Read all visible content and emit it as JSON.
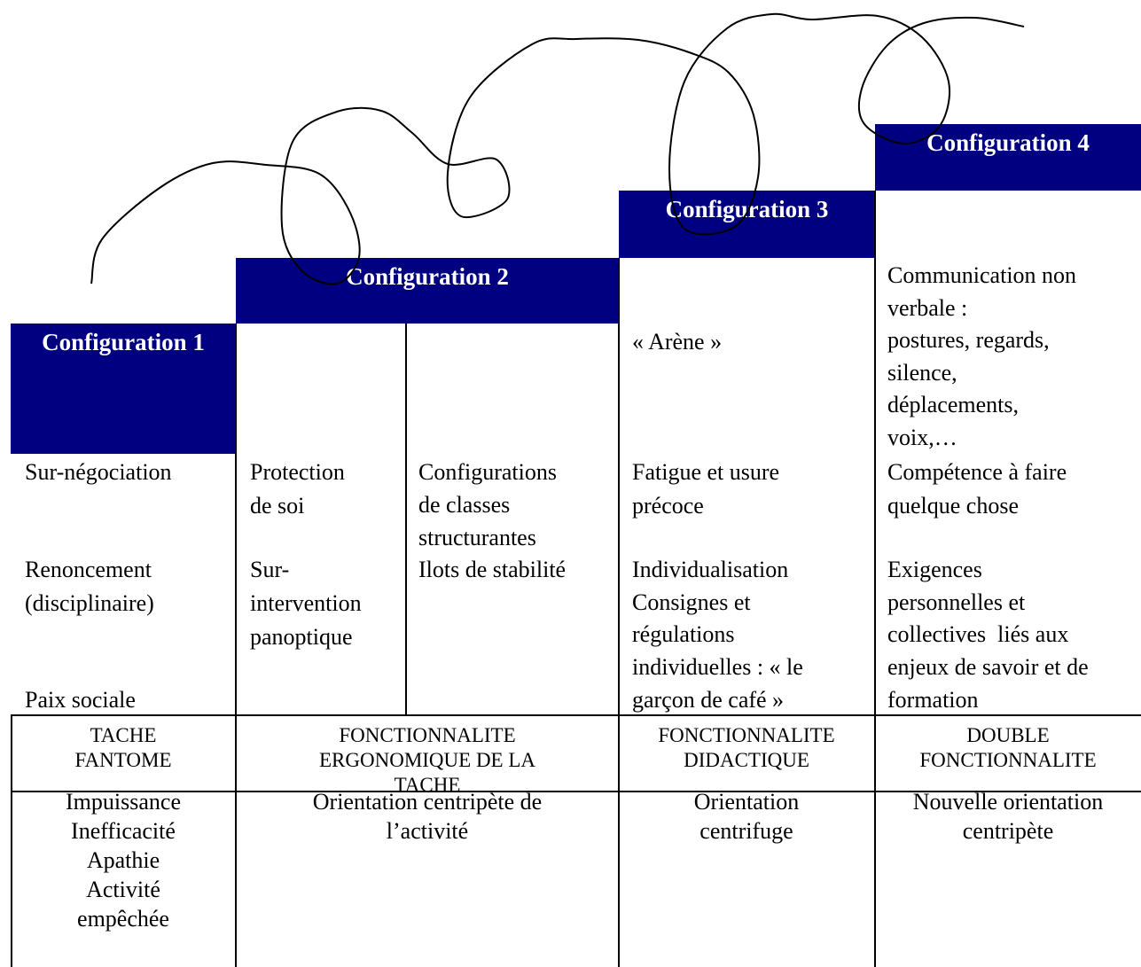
{
  "headers": [
    "Configuration 1",
    "Configuration 2",
    "Configuration 3",
    "Configuration 4"
  ],
  "blocks": [
    [
      "Sur-négociation"
    ],
    [
      "Renoncement",
      "(disciplinaire)"
    ],
    [
      "Paix sociale"
    ],
    [
      "Protection",
      "de soi"
    ],
    [
      "Sur-",
      "intervention",
      "panoptique"
    ],
    [
      "Configurations",
      "de classes",
      "structurantes"
    ],
    [
      "Ilots de stabilité"
    ],
    [
      "« Arène »"
    ],
    [
      "Fatigue et usure",
      "précoce"
    ],
    [
      "Individualisation",
      "Consignes et",
      "régulations",
      "individuelles : « le",
      "garçon de café »"
    ],
    [
      "Communication non",
      "verbale :",
      "postures, regards,",
      "silence,",
      "déplacements,",
      "voix,…"
    ],
    [
      "Compétence à faire",
      "quelque chose"
    ],
    [
      "Exigences",
      "personnelles et",
      "collectives  liés aux",
      "enjeux de savoir et de",
      "formation"
    ]
  ],
  "functions": [
    [
      "TACHE",
      "FANTOME"
    ],
    [
      "FONCTIONNALITE",
      "ERGONOMIQUE DE LA",
      "TACHE"
    ],
    [
      "FONCTIONNALITE",
      "DIDACTIQUE"
    ],
    [
      "DOUBLE",
      "FONCTIONNALITE"
    ]
  ],
  "orientations": [
    [
      "Impuissance",
      "Inefficacité",
      "Apathie",
      "Activité",
      "empêchée"
    ],
    [
      "Orientation centripète de",
      "l’activité"
    ],
    [
      "Orientation",
      "centrifuge"
    ],
    [
      "Nouvelle orientation",
      "centripète"
    ]
  ]
}
